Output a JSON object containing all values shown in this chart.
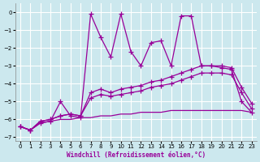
{
  "background_color": "#cce8ee",
  "grid_color": "#aad4dd",
  "line_color": "#990099",
  "xlabel": "Windchill (Refroidissement éolien,°C)",
  "xlim": [
    -0.5,
    23.5
  ],
  "ylim": [
    -7.2,
    0.5
  ],
  "yticks": [
    0,
    -1,
    -2,
    -3,
    -4,
    -5,
    -6,
    -7
  ],
  "xticks": [
    0,
    1,
    2,
    3,
    4,
    5,
    6,
    7,
    8,
    9,
    10,
    11,
    12,
    13,
    14,
    15,
    16,
    17,
    18,
    19,
    20,
    21,
    22,
    23
  ],
  "zigzag_y": [
    -6.4,
    -6.6,
    -6.2,
    -6.1,
    -5.0,
    -5.8,
    -5.9,
    -0.1,
    -1.4,
    -2.5,
    -0.1,
    -2.2,
    -3.0,
    -1.7,
    -1.6,
    -3.0,
    -0.2,
    -0.2,
    -3.0,
    -3.0,
    -3.1,
    -3.2,
    -5.0,
    -5.6
  ],
  "mid_upper_y": [
    -6.4,
    -6.6,
    -6.1,
    -6.0,
    -5.8,
    -5.7,
    -5.8,
    -4.5,
    -4.3,
    -4.5,
    -4.3,
    -4.2,
    -4.1,
    -3.9,
    -3.8,
    -3.6,
    -3.4,
    -3.2,
    -3.0,
    -3.0,
    -3.0,
    -3.1,
    -4.2,
    -5.1
  ],
  "mid_lower_y": [
    -6.4,
    -6.6,
    -6.1,
    -6.0,
    -5.8,
    -5.7,
    -5.8,
    -4.8,
    -4.6,
    -4.7,
    -4.6,
    -4.5,
    -4.4,
    -4.2,
    -4.1,
    -4.0,
    -3.8,
    -3.6,
    -3.4,
    -3.4,
    -3.4,
    -3.5,
    -4.5,
    -5.4
  ],
  "flat_y": [
    -6.4,
    -6.6,
    -6.2,
    -6.1,
    -6.0,
    -6.0,
    -5.9,
    -5.9,
    -5.8,
    -5.8,
    -5.7,
    -5.7,
    -5.6,
    -5.6,
    -5.6,
    -5.5,
    -5.5,
    -5.5,
    -5.5,
    -5.5,
    -5.5,
    -5.5,
    -5.5,
    -5.6
  ]
}
